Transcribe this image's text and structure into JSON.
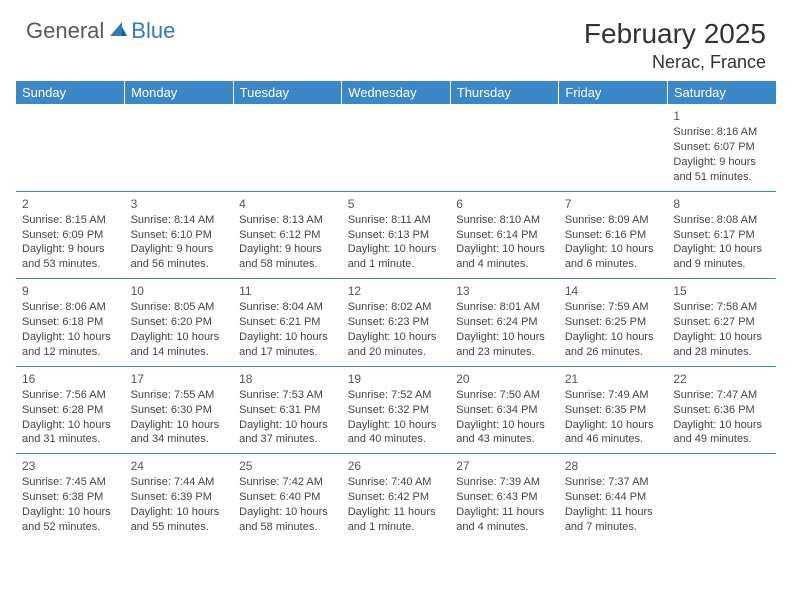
{
  "brand": {
    "part1": "General",
    "part2": "Blue"
  },
  "title": "February 2025",
  "location": "Nerac, France",
  "colors": {
    "header_bg": "#3b87c8",
    "header_text": "#ffffff",
    "cell_border": "#3b87c8",
    "text": "#444444",
    "brand_gray": "#5a5a5a",
    "brand_blue": "#2f7ac0",
    "background": "#ffffff"
  },
  "day_headers": [
    "Sunday",
    "Monday",
    "Tuesday",
    "Wednesday",
    "Thursday",
    "Friday",
    "Saturday"
  ],
  "weeks": [
    [
      null,
      null,
      null,
      null,
      null,
      null,
      {
        "n": "1",
        "sr": "Sunrise: 8:16 AM",
        "ss": "Sunset: 6:07 PM",
        "dl": "Daylight: 9 hours and 51 minutes."
      }
    ],
    [
      {
        "n": "2",
        "sr": "Sunrise: 8:15 AM",
        "ss": "Sunset: 6:09 PM",
        "dl": "Daylight: 9 hours and 53 minutes."
      },
      {
        "n": "3",
        "sr": "Sunrise: 8:14 AM",
        "ss": "Sunset: 6:10 PM",
        "dl": "Daylight: 9 hours and 56 minutes."
      },
      {
        "n": "4",
        "sr": "Sunrise: 8:13 AM",
        "ss": "Sunset: 6:12 PM",
        "dl": "Daylight: 9 hours and 58 minutes."
      },
      {
        "n": "5",
        "sr": "Sunrise: 8:11 AM",
        "ss": "Sunset: 6:13 PM",
        "dl": "Daylight: 10 hours and 1 minute."
      },
      {
        "n": "6",
        "sr": "Sunrise: 8:10 AM",
        "ss": "Sunset: 6:14 PM",
        "dl": "Daylight: 10 hours and 4 minutes."
      },
      {
        "n": "7",
        "sr": "Sunrise: 8:09 AM",
        "ss": "Sunset: 6:16 PM",
        "dl": "Daylight: 10 hours and 6 minutes."
      },
      {
        "n": "8",
        "sr": "Sunrise: 8:08 AM",
        "ss": "Sunset: 6:17 PM",
        "dl": "Daylight: 10 hours and 9 minutes."
      }
    ],
    [
      {
        "n": "9",
        "sr": "Sunrise: 8:06 AM",
        "ss": "Sunset: 6:18 PM",
        "dl": "Daylight: 10 hours and 12 minutes."
      },
      {
        "n": "10",
        "sr": "Sunrise: 8:05 AM",
        "ss": "Sunset: 6:20 PM",
        "dl": "Daylight: 10 hours and 14 minutes."
      },
      {
        "n": "11",
        "sr": "Sunrise: 8:04 AM",
        "ss": "Sunset: 6:21 PM",
        "dl": "Daylight: 10 hours and 17 minutes."
      },
      {
        "n": "12",
        "sr": "Sunrise: 8:02 AM",
        "ss": "Sunset: 6:23 PM",
        "dl": "Daylight: 10 hours and 20 minutes."
      },
      {
        "n": "13",
        "sr": "Sunrise: 8:01 AM",
        "ss": "Sunset: 6:24 PM",
        "dl": "Daylight: 10 hours and 23 minutes."
      },
      {
        "n": "14",
        "sr": "Sunrise: 7:59 AM",
        "ss": "Sunset: 6:25 PM",
        "dl": "Daylight: 10 hours and 26 minutes."
      },
      {
        "n": "15",
        "sr": "Sunrise: 7:58 AM",
        "ss": "Sunset: 6:27 PM",
        "dl": "Daylight: 10 hours and 28 minutes."
      }
    ],
    [
      {
        "n": "16",
        "sr": "Sunrise: 7:56 AM",
        "ss": "Sunset: 6:28 PM",
        "dl": "Daylight: 10 hours and 31 minutes."
      },
      {
        "n": "17",
        "sr": "Sunrise: 7:55 AM",
        "ss": "Sunset: 6:30 PM",
        "dl": "Daylight: 10 hours and 34 minutes."
      },
      {
        "n": "18",
        "sr": "Sunrise: 7:53 AM",
        "ss": "Sunset: 6:31 PM",
        "dl": "Daylight: 10 hours and 37 minutes."
      },
      {
        "n": "19",
        "sr": "Sunrise: 7:52 AM",
        "ss": "Sunset: 6:32 PM",
        "dl": "Daylight: 10 hours and 40 minutes."
      },
      {
        "n": "20",
        "sr": "Sunrise: 7:50 AM",
        "ss": "Sunset: 6:34 PM",
        "dl": "Daylight: 10 hours and 43 minutes."
      },
      {
        "n": "21",
        "sr": "Sunrise: 7:49 AM",
        "ss": "Sunset: 6:35 PM",
        "dl": "Daylight: 10 hours and 46 minutes."
      },
      {
        "n": "22",
        "sr": "Sunrise: 7:47 AM",
        "ss": "Sunset: 6:36 PM",
        "dl": "Daylight: 10 hours and 49 minutes."
      }
    ],
    [
      {
        "n": "23",
        "sr": "Sunrise: 7:45 AM",
        "ss": "Sunset: 6:38 PM",
        "dl": "Daylight: 10 hours and 52 minutes."
      },
      {
        "n": "24",
        "sr": "Sunrise: 7:44 AM",
        "ss": "Sunset: 6:39 PM",
        "dl": "Daylight: 10 hours and 55 minutes."
      },
      {
        "n": "25",
        "sr": "Sunrise: 7:42 AM",
        "ss": "Sunset: 6:40 PM",
        "dl": "Daylight: 10 hours and 58 minutes."
      },
      {
        "n": "26",
        "sr": "Sunrise: 7:40 AM",
        "ss": "Sunset: 6:42 PM",
        "dl": "Daylight: 11 hours and 1 minute."
      },
      {
        "n": "27",
        "sr": "Sunrise: 7:39 AM",
        "ss": "Sunset: 6:43 PM",
        "dl": "Daylight: 11 hours and 4 minutes."
      },
      {
        "n": "28",
        "sr": "Sunrise: 7:37 AM",
        "ss": "Sunset: 6:44 PM",
        "dl": "Daylight: 11 hours and 7 minutes."
      },
      null
    ]
  ]
}
